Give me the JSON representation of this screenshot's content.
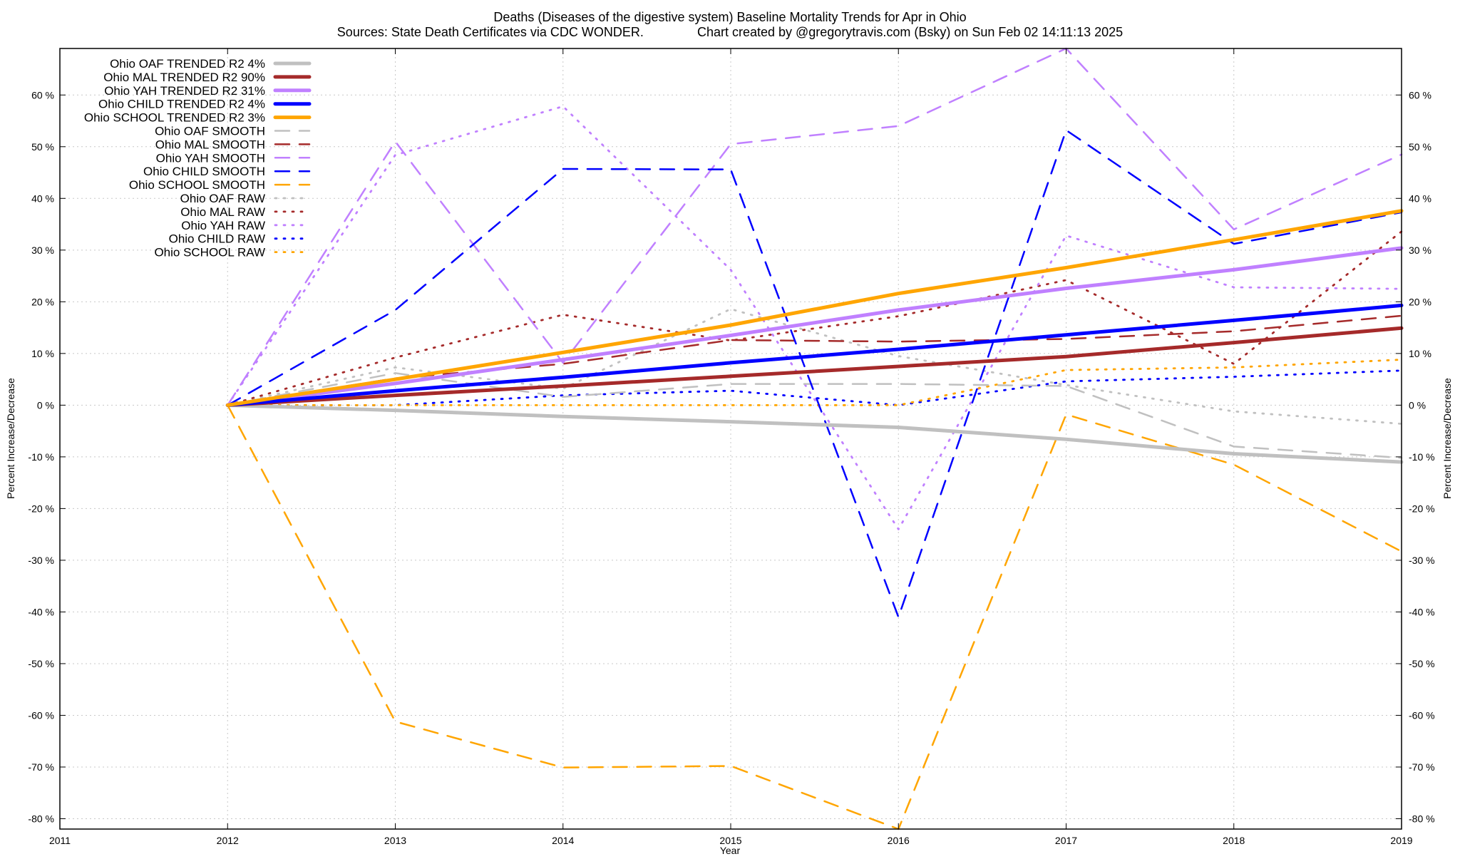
{
  "chart_data": {
    "type": "line",
    "title_line1": "Deaths (Diseases of the digestive system)  Baseline Mortality Trends for Apr in Ohio",
    "title_line2": "Sources: State Death Certificates via CDC WONDER.               Chart created by @gregorytravis.com (Bsky) on Sun Feb 02 14:11:13 2025",
    "xlabel": "Year",
    "ylabel": "Percent Increase/Decrease",
    "y2label": "Percent Increase/Decrease",
    "xlim": [
      2011,
      2019
    ],
    "ylim": [
      -82,
      69
    ],
    "x_ticks": [
      2011,
      2012,
      2013,
      2014,
      2015,
      2016,
      2017,
      2018,
      2019
    ],
    "y_ticks": [
      60,
      50,
      40,
      30,
      20,
      10,
      0,
      -10,
      -20,
      -30,
      -40,
      -50,
      -60,
      -70,
      -80
    ],
    "y_tick_labels": [
      "60 %",
      "50 %",
      "40 %",
      "30 %",
      "20 %",
      "10 %",
      "0 %",
      "-10 %",
      "-20 %",
      "-30 %",
      "-40 %",
      "-50 %",
      "-60 %",
      "-70 %",
      "-80 %"
    ],
    "grid": true,
    "legend_position": "top-left",
    "x": [
      2012,
      2013,
      2014,
      2015,
      2016,
      2017,
      2018,
      2019
    ],
    "series": [
      {
        "name": "Ohio OAF TRENDED R2  4%",
        "style": "trend",
        "color": "#c0c0c0",
        "values": [
          0,
          -1,
          -2.2,
          -3.2,
          -4.3,
          -6.6,
          -9.4,
          -11
        ]
      },
      {
        "name": "Ohio MAL TRENDED R2  90%",
        "style": "trend",
        "color": "#a52a2a",
        "values": [
          0,
          1.9,
          3.7,
          5.6,
          7.5,
          9.4,
          12.1,
          14.9
        ]
      },
      {
        "name": "Ohio YAH TRENDED R2  31%",
        "style": "trend",
        "color": "#c080ff",
        "values": [
          0,
          4.2,
          8.8,
          13.5,
          18.4,
          22.6,
          26.2,
          30.4
        ]
      },
      {
        "name": "Ohio CHILD TRENDED R2  4%",
        "style": "trend",
        "color": "#0000ff",
        "values": [
          0,
          2.8,
          5.4,
          8.2,
          10.8,
          13.6,
          16.4,
          19.3
        ]
      },
      {
        "name": "Ohio SCHOOL TRENDED R2  3%",
        "style": "trend",
        "color": "#ffa500",
        "values": [
          0,
          5,
          10.2,
          15.5,
          21.6,
          26.6,
          32,
          37.6
        ]
      },
      {
        "name": "Ohio OAF SMOOTH",
        "style": "smooth",
        "color": "#c0c0c0",
        "values": [
          0,
          6.2,
          1.6,
          4.1,
          4.1,
          3.7,
          -8,
          -10.2
        ]
      },
      {
        "name": "Ohio MAL SMOOTH",
        "style": "smooth",
        "color": "#a52a2a",
        "values": [
          0,
          5.2,
          8,
          12.6,
          12.3,
          12.8,
          14.3,
          17.3
        ]
      },
      {
        "name": "Ohio YAH SMOOTH",
        "style": "smooth",
        "color": "#c080ff",
        "values": [
          0,
          51,
          8.2,
          50.5,
          54,
          69,
          34,
          48.5
        ]
      },
      {
        "name": "Ohio CHILD SMOOTH",
        "style": "smooth",
        "color": "#0000ff",
        "values": [
          0,
          18.4,
          45.7,
          45.6,
          -41,
          53.2,
          31.2,
          37.3
        ]
      },
      {
        "name": "Ohio SCHOOL SMOOTH",
        "style": "smooth",
        "color": "#ffa500",
        "values": [
          0,
          -61.2,
          -70.1,
          -69.8,
          -82.5,
          -1.8,
          -11.5,
          -28.3
        ]
      },
      {
        "name": "Ohio OAF RAW",
        "style": "raw",
        "color": "#c0c0c0",
        "values": [
          0,
          7.3,
          3.2,
          18.6,
          9.5,
          3.9,
          -1.2,
          -3.6
        ]
      },
      {
        "name": "Ohio MAL RAW",
        "style": "raw",
        "color": "#a52a2a",
        "values": [
          0,
          9.2,
          17.5,
          12.5,
          17.2,
          24.2,
          8,
          33.6
        ]
      },
      {
        "name": "Ohio YAH RAW",
        "style": "raw",
        "color": "#c080ff",
        "values": [
          0,
          48.4,
          57.8,
          26.2,
          -24,
          32.8,
          22.8,
          22.5
        ]
      },
      {
        "name": "Ohio CHILD RAW",
        "style": "raw",
        "color": "#0000ff",
        "values": [
          0,
          0,
          1.9,
          2.8,
          0,
          4.6,
          5.5,
          6.7
        ]
      },
      {
        "name": "Ohio SCHOOL RAW",
        "style": "raw",
        "color": "#ffa500",
        "values": [
          0,
          0,
          0,
          0,
          0,
          6.8,
          7.3,
          8.8
        ]
      }
    ]
  }
}
